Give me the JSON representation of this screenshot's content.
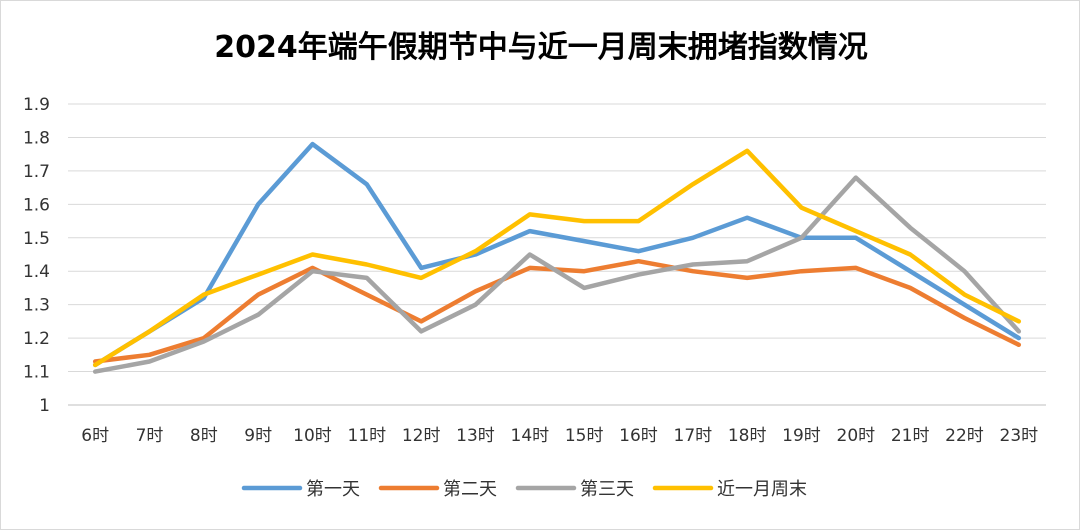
{
  "chart_data": {
    "type": "line",
    "title": "2024年端午假期节中与近一月周末拥堵指数情况",
    "xlabel": "",
    "ylabel": "",
    "ylim": [
      1.0,
      1.9
    ],
    "yticks": [
      "1",
      "1.1",
      "1.2",
      "1.3",
      "1.4",
      "1.5",
      "1.6",
      "1.7",
      "1.8",
      "1.9"
    ],
    "grid": true,
    "legend_position": "bottom",
    "categories": [
      "6时",
      "7时",
      "8时",
      "9时",
      "10时",
      "11时",
      "12时",
      "13时",
      "14时",
      "15时",
      "16时",
      "17时",
      "18时",
      "19时",
      "20时",
      "21时",
      "22时",
      "23时"
    ],
    "series": [
      {
        "name": "第一天",
        "color": "#5b9bd5",
        "values": [
          1.12,
          1.22,
          1.32,
          1.6,
          1.78,
          1.66,
          1.41,
          1.45,
          1.52,
          1.49,
          1.46,
          1.5,
          1.56,
          1.5,
          1.5,
          1.4,
          1.3,
          1.2
        ]
      },
      {
        "name": "第二天",
        "color": "#ed7d31",
        "values": [
          1.13,
          1.15,
          1.2,
          1.33,
          1.41,
          1.33,
          1.25,
          1.34,
          1.41,
          1.4,
          1.43,
          1.4,
          1.38,
          1.4,
          1.41,
          1.35,
          1.26,
          1.18
        ]
      },
      {
        "name": "第三天",
        "color": "#a5a5a5",
        "values": [
          1.1,
          1.13,
          1.19,
          1.27,
          1.4,
          1.38,
          1.22,
          1.3,
          1.45,
          1.35,
          1.39,
          1.42,
          1.43,
          1.5,
          1.68,
          1.53,
          1.4,
          1.22
        ]
      },
      {
        "name": "近一月周末",
        "color": "#ffc000",
        "values": [
          1.12,
          1.22,
          1.33,
          1.39,
          1.45,
          1.42,
          1.38,
          1.46,
          1.57,
          1.55,
          1.55,
          1.66,
          1.76,
          1.59,
          1.52,
          1.45,
          1.33,
          1.25
        ]
      }
    ]
  }
}
